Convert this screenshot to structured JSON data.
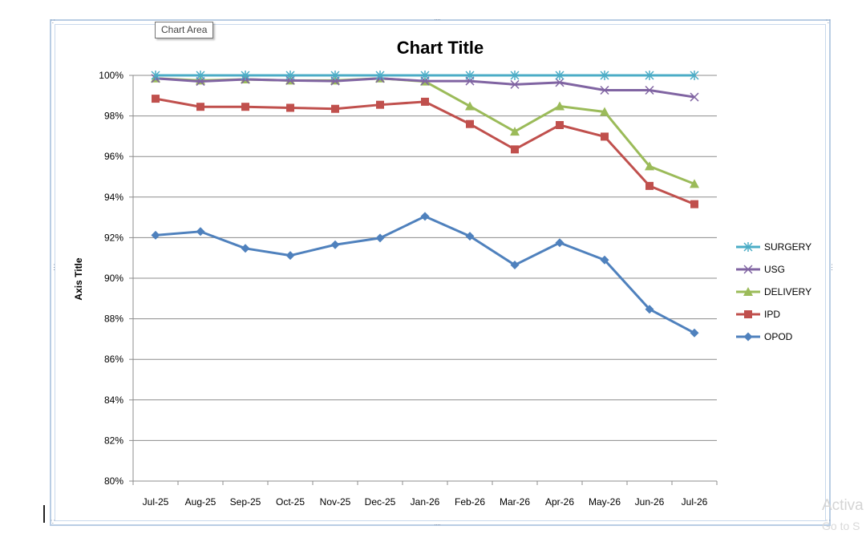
{
  "app": {
    "tooltip": "Chart Area",
    "watermark_line1": "Activa",
    "watermark_line2": "Go to S"
  },
  "chart_data": {
    "type": "line",
    "title": "Chart Title",
    "xlabel": "",
    "ylabel": "Axis Title",
    "ylim": [
      80,
      100
    ],
    "y_ticks": [
      "80%",
      "82%",
      "84%",
      "86%",
      "88%",
      "90%",
      "92%",
      "94%",
      "96%",
      "98%",
      "100%"
    ],
    "grid": true,
    "legend_position": "right",
    "categories": [
      "Jul-25",
      "Aug-25",
      "Sep-25",
      "Oct-25",
      "Nov-25",
      "Dec-25",
      "Jan-26",
      "Feb-26",
      "Mar-26",
      "Apr-26",
      "May-26",
      "Jun-26",
      "Jul-26"
    ],
    "series": [
      {
        "name": "SURGERY",
        "color": "#4bacc6",
        "marker": "star",
        "values": [
          100,
          100,
          100,
          100,
          100,
          100,
          100,
          100,
          100,
          100,
          100,
          100,
          100
        ]
      },
      {
        "name": "USG",
        "color": "#8064a2",
        "marker": "x",
        "values": [
          99.85,
          99.7,
          99.8,
          99.75,
          99.72,
          99.85,
          99.72,
          99.72,
          99.55,
          99.65,
          99.27,
          99.27,
          98.93
        ]
      },
      {
        "name": "DELIVERY",
        "color": "#9bbb59",
        "marker": "triangle",
        "values": [
          99.85,
          99.75,
          99.8,
          99.75,
          99.75,
          99.85,
          99.7,
          98.48,
          97.23,
          98.48,
          98.2,
          95.52,
          94.65
        ]
      },
      {
        "name": "IPD",
        "color": "#c0504d",
        "marker": "square",
        "values": [
          98.85,
          98.45,
          98.45,
          98.4,
          98.35,
          98.55,
          98.7,
          97.6,
          96.35,
          97.55,
          96.98,
          94.55,
          93.65
        ]
      },
      {
        "name": "OPOD",
        "color": "#4f81bd",
        "marker": "diamond",
        "values": [
          92.12,
          92.3,
          91.47,
          91.12,
          91.65,
          91.98,
          93.05,
          92.07,
          90.65,
          91.75,
          90.9,
          88.47,
          87.3
        ]
      }
    ]
  }
}
